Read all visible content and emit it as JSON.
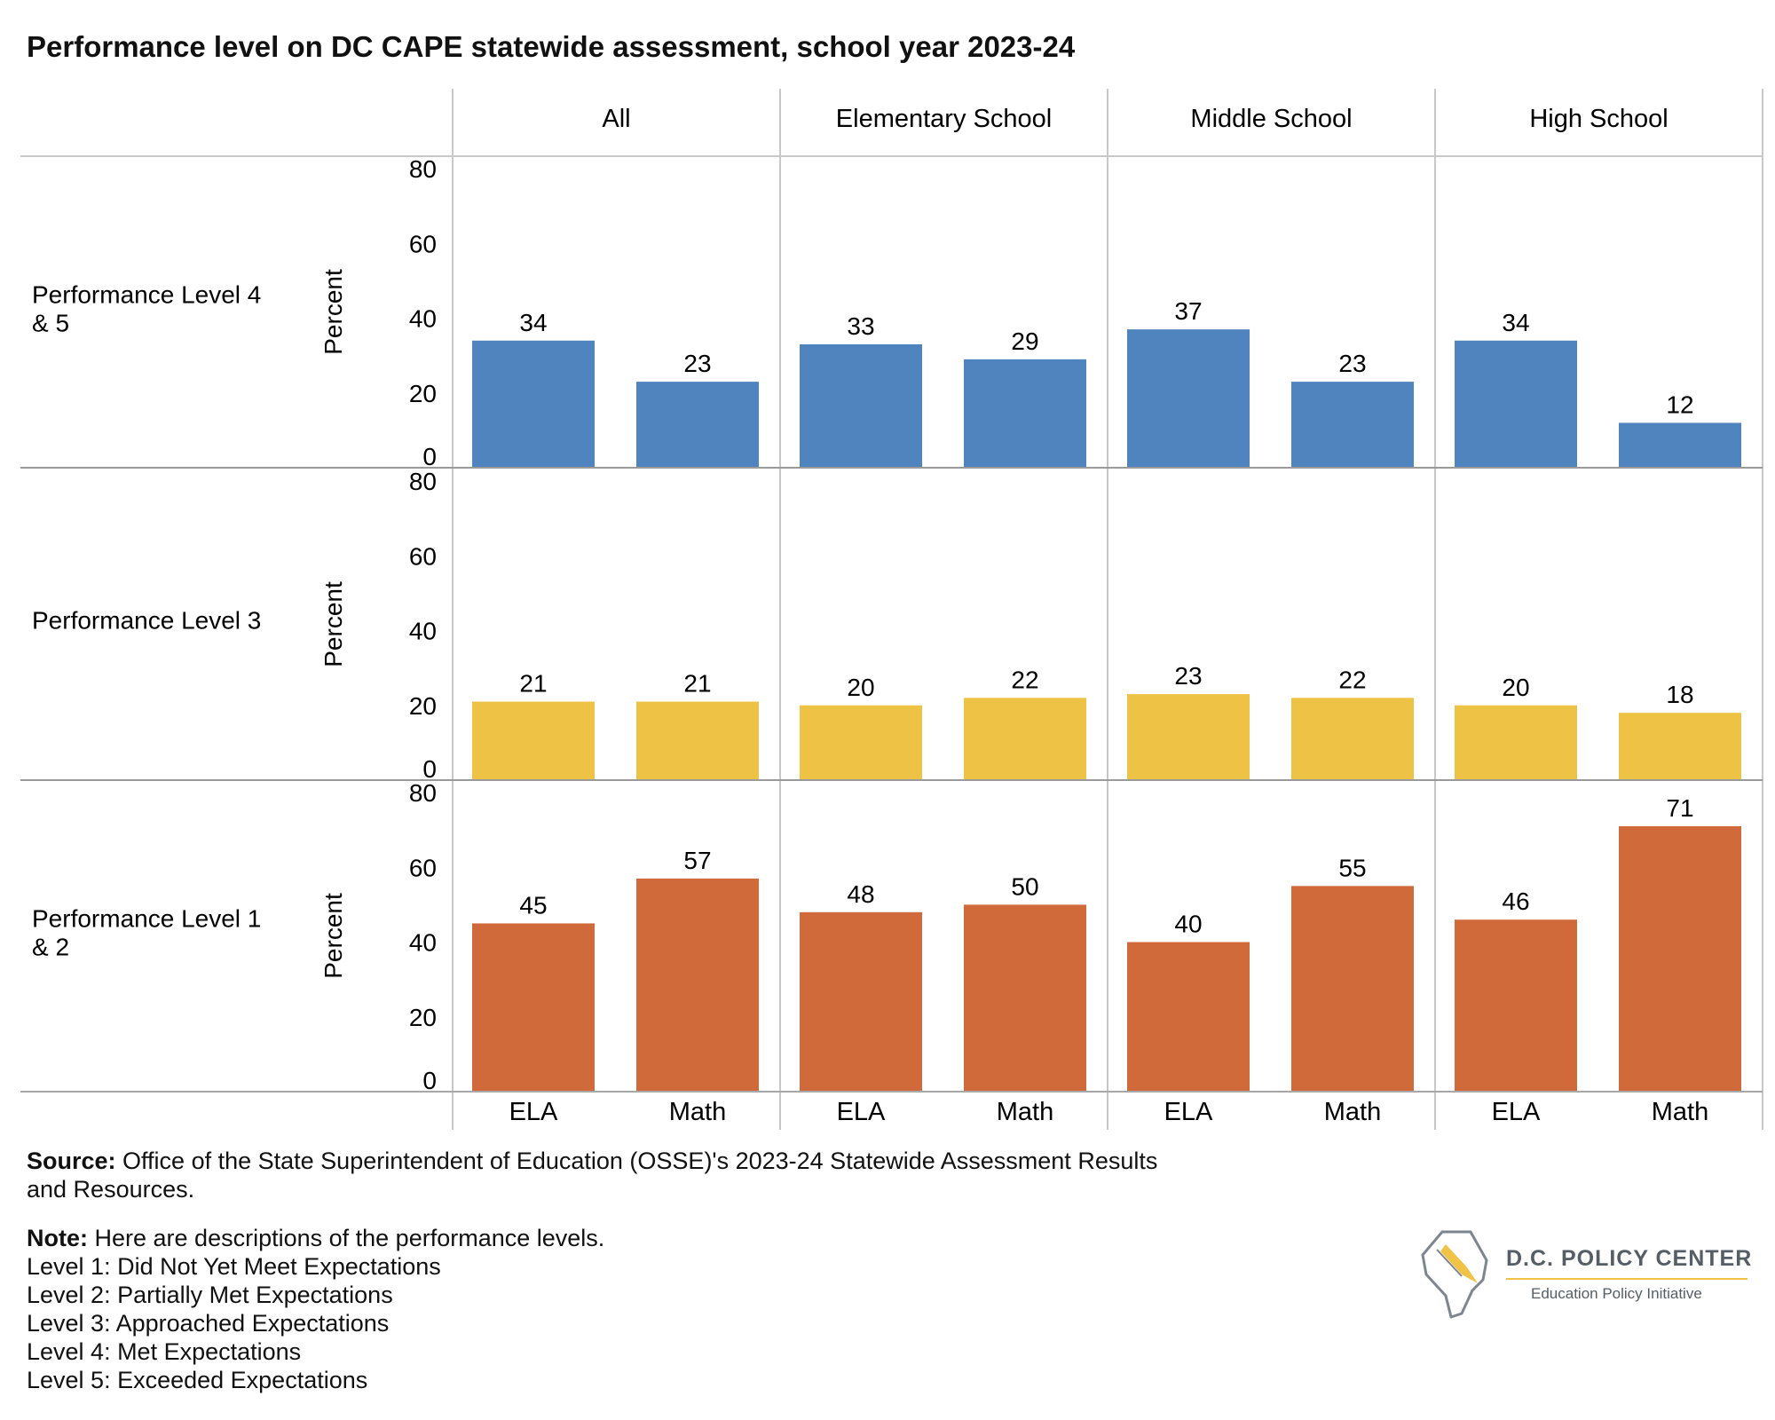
{
  "title": "Performance level on DC CAPE statewide assessment, school year 2023-24",
  "colors": {
    "level_4_5": "#5084bf",
    "level_3": "#eec244",
    "level_1_2": "#d06a3a",
    "grid": "#c8c8c8"
  },
  "chart_data": {
    "type": "bar",
    "layout": "trellis",
    "columns": [
      "All",
      "Elementary School",
      "Middle School",
      "High School"
    ],
    "categories": [
      "ELA",
      "Math"
    ],
    "ylabel": "Percent",
    "ylim": [
      0,
      80
    ],
    "yticks": [
      0,
      20,
      40,
      60,
      80
    ],
    "grid": false,
    "rows": [
      {
        "label": "Performance Level 4 & 5",
        "label_lines": [
          "Performance Level 4",
          "& 5"
        ],
        "color_key": "level_4_5",
        "values": [
          [
            34,
            23
          ],
          [
            33,
            29
          ],
          [
            37,
            23
          ],
          [
            34,
            12
          ]
        ]
      },
      {
        "label": "Performance Level 3",
        "label_lines": [
          "Performance Level 3"
        ],
        "color_key": "level_3",
        "values": [
          [
            21,
            21
          ],
          [
            20,
            22
          ],
          [
            23,
            22
          ],
          [
            20,
            18
          ]
        ]
      },
      {
        "label": "Performance Level 1 & 2",
        "label_lines": [
          "Performance Level 1",
          "& 2"
        ],
        "color_key": "level_1_2",
        "values": [
          [
            45,
            57
          ],
          [
            48,
            50
          ],
          [
            40,
            55
          ],
          [
            46,
            71
          ]
        ]
      }
    ]
  },
  "source": {
    "label": "Source:",
    "text": " Office of the State Superintendent of Education (OSSE)'s 2023-24 Statewide Assessment Results",
    "text2": "and Resources."
  },
  "note": {
    "label": "Note:",
    "text": " Here are descriptions of the performance levels.",
    "levels": [
      "Level 1: Did Not Yet Meet Expectations",
      "Level 2: Partially Met Expectations",
      "Level 3: Approached Expectations",
      "Level 4: Met Expectations",
      "Level 5: Exceeded Expectations"
    ]
  },
  "logo": {
    "title": "D.C. POLICY CENTER",
    "subtitle": "Education Policy Initiative"
  }
}
